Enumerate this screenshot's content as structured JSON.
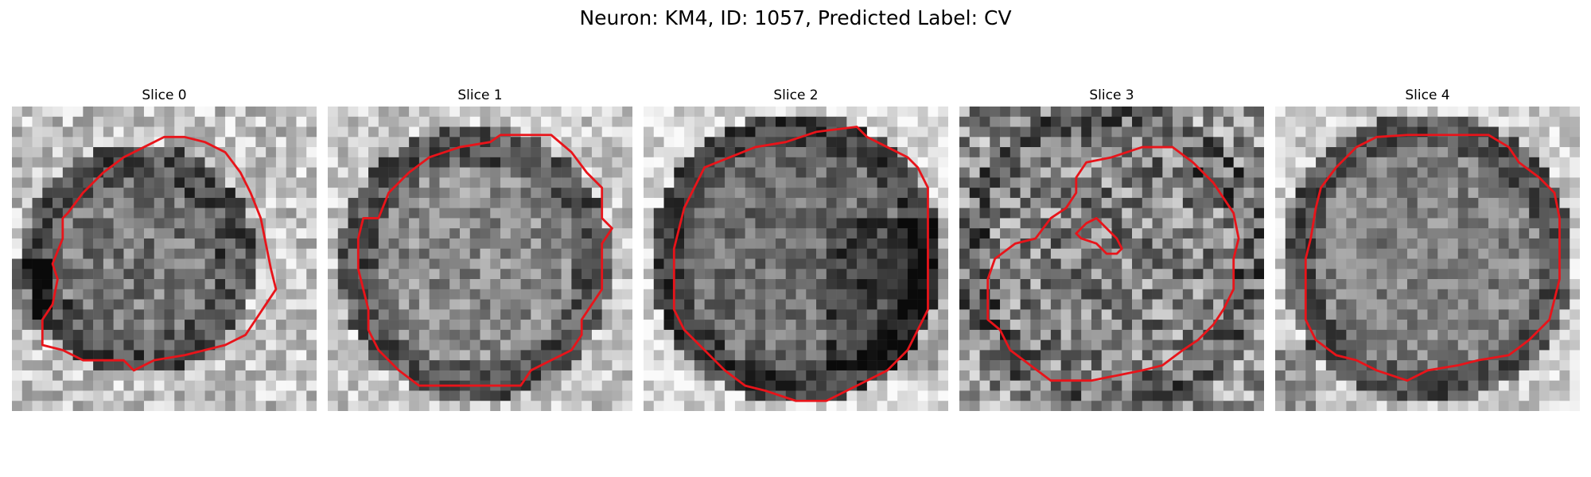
{
  "figure": {
    "title": "Neuron: KM4, ID: 1057, Predicted Label: CV"
  },
  "colors": {
    "contour": "#e8141a",
    "background": "#ffffff"
  },
  "panels": [
    {
      "title": "Slice 0"
    },
    {
      "title": "Slice 1"
    },
    {
      "title": "Slice 2"
    },
    {
      "title": "Slice 3"
    },
    {
      "title": "Slice 4"
    }
  ]
}
